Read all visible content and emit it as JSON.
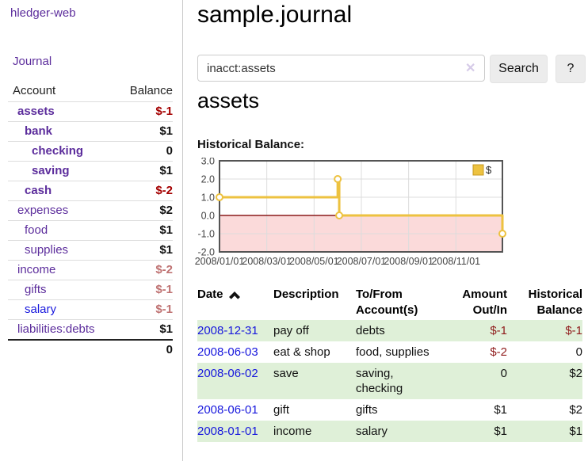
{
  "app": {
    "brand": "hledger-web",
    "nav_journal": "Journal"
  },
  "sidebar": {
    "header": {
      "account": "Account",
      "balance": "Balance"
    },
    "accounts": [
      {
        "name": "assets",
        "depth": 1,
        "bold": true,
        "link_color": "purple",
        "balance": "$-1",
        "balance_style": "neg"
      },
      {
        "name": "bank",
        "depth": 2,
        "bold": true,
        "link_color": "purple",
        "balance": "$1",
        "balance_style": "pos"
      },
      {
        "name": "checking",
        "depth": 3,
        "bold": true,
        "link_color": "purple",
        "balance": "0",
        "balance_style": "pos"
      },
      {
        "name": "saving",
        "depth": 3,
        "bold": true,
        "link_color": "purple",
        "balance": "$1",
        "balance_style": "pos"
      },
      {
        "name": "cash",
        "depth": 2,
        "bold": true,
        "link_color": "purple",
        "balance": "$-2",
        "balance_style": "neg"
      },
      {
        "name": "expenses",
        "depth": 1,
        "bold": false,
        "link_color": "purple",
        "balance": "$2",
        "balance_style": "pos"
      },
      {
        "name": "food",
        "depth": 2,
        "bold": false,
        "link_color": "purple",
        "balance": "$1",
        "balance_style": "pos"
      },
      {
        "name": "supplies",
        "depth": 2,
        "bold": false,
        "link_color": "purple",
        "balance": "$1",
        "balance_style": "pos"
      },
      {
        "name": "income",
        "depth": 1,
        "bold": false,
        "link_color": "purple",
        "balance": "$-2",
        "balance_style": "neg-muted"
      },
      {
        "name": "gifts",
        "depth": 2,
        "bold": false,
        "link_color": "purple",
        "balance": "$-1",
        "balance_style": "neg-muted"
      },
      {
        "name": "salary",
        "depth": 2,
        "bold": false,
        "link_color": "blue",
        "balance": "$-1",
        "balance_style": "neg-muted"
      },
      {
        "name": "liabilities:debts",
        "depth": 1,
        "bold": false,
        "link_color": "purple",
        "balance": "$1",
        "balance_style": "pos"
      }
    ],
    "total": "0"
  },
  "header": {
    "title": "sample.journal"
  },
  "search": {
    "value": "inacct:assets",
    "clear_icon": "✕",
    "button_label": "Search",
    "help_label": "?"
  },
  "account_page": {
    "heading": "assets",
    "chart_label": "Historical Balance:"
  },
  "chart_data": {
    "type": "line",
    "title": "Historical Balance",
    "step": true,
    "series": [
      {
        "name": "$",
        "color": "#edc240",
        "points": [
          [
            "2008/01/01",
            1
          ],
          [
            "2008/06/01",
            2
          ],
          [
            "2008/06/03",
            0
          ],
          [
            "2008/12/31",
            -1
          ]
        ]
      }
    ],
    "ylim": [
      -2,
      3
    ],
    "yticks": [
      3.0,
      2.0,
      1.0,
      0.0,
      -1.0,
      -2.0
    ],
    "xticks": [
      "2008/01/01",
      "2008/03/01",
      "2008/05/01",
      "2008/07/01",
      "2008/09/01",
      "2008/11/01"
    ],
    "xrange": [
      "2008/01/01",
      "2008/12/31"
    ],
    "legend": "$",
    "legend_position": "top-right",
    "grid": true,
    "negative_region_color": "#fbdada",
    "zero_line_color": "#8b1a1a",
    "border_color": "#545454",
    "gridline_color": "#dcdcdc"
  },
  "register": {
    "columns": [
      "Date",
      "Description",
      "To/From Account(s)",
      "Amount Out/In",
      "Historical Balance"
    ],
    "rows": [
      {
        "date": "2008-12-31",
        "description": "pay off",
        "accounts": "debts",
        "amount": "$-1",
        "amount_neg": true,
        "balance": "$-1",
        "balance_neg": true,
        "shaded": true
      },
      {
        "date": "2008-06-03",
        "description": "eat & shop",
        "accounts": "food, supplies",
        "amount": "$-2",
        "amount_neg": true,
        "balance": "0",
        "balance_neg": false,
        "shaded": false
      },
      {
        "date": "2008-06-02",
        "description": "save",
        "accounts": "saving, checking",
        "amount": "0",
        "amount_neg": false,
        "balance": "$2",
        "balance_neg": false,
        "shaded": true
      },
      {
        "date": "2008-06-01",
        "description": "gift",
        "accounts": "gifts",
        "amount": "$1",
        "amount_neg": false,
        "balance": "$2",
        "balance_neg": false,
        "shaded": false
      },
      {
        "date": "2008-01-01",
        "description": "income",
        "accounts": "salary",
        "amount": "$1",
        "amount_neg": false,
        "balance": "$1",
        "balance_neg": false,
        "shaded": true
      }
    ]
  }
}
